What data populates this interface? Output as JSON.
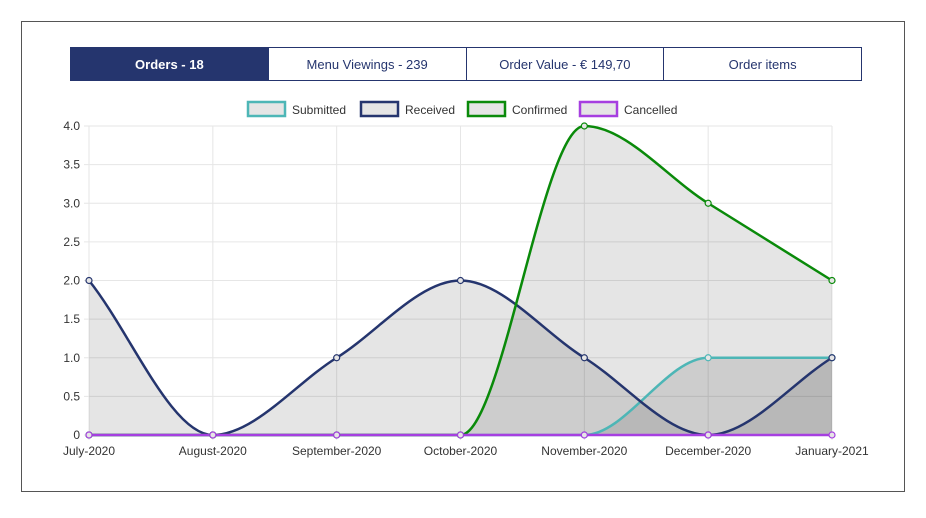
{
  "tabs": [
    {
      "label": "Orders - 18",
      "active": true
    },
    {
      "label": "Menu Viewings - 239",
      "active": false
    },
    {
      "label": "Order Value - € 149,70",
      "active": false
    },
    {
      "label": "Order items",
      "active": false
    }
  ],
  "colors": {
    "accent": "#25356e",
    "submitted": "#4db6b6",
    "received": "#25356e",
    "confirmed": "#0a8a0a",
    "cancelled": "#a63fe0",
    "fill": "rgba(0,0,0,0.1)",
    "grid": "#e6e6e6"
  },
  "chart_data": {
    "type": "line",
    "x": [
      "July-2020",
      "August-2020",
      "September-2020",
      "October-2020",
      "November-2020",
      "December-2020",
      "January-2021"
    ],
    "ylim": [
      0,
      4
    ],
    "yticks": [
      "4.0",
      "3.5",
      "3.0",
      "2.5",
      "2.0",
      "1.5",
      "1.0",
      "0.5",
      "0"
    ],
    "grid": true,
    "legend_position": "top",
    "curve": "smooth",
    "filled": true,
    "series": [
      {
        "name": "Submitted",
        "color": "#4db6b6",
        "values": [
          0,
          0,
          0,
          0,
          0,
          1,
          1
        ]
      },
      {
        "name": "Received",
        "color": "#25356e",
        "values": [
          2,
          0,
          1,
          2,
          1,
          0,
          1
        ]
      },
      {
        "name": "Confirmed",
        "color": "#0a8a0a",
        "values": [
          0,
          0,
          0,
          0,
          4,
          3,
          2
        ]
      },
      {
        "name": "Cancelled",
        "color": "#a63fe0",
        "values": [
          0,
          0,
          0,
          0,
          0,
          0,
          0
        ]
      }
    ]
  }
}
